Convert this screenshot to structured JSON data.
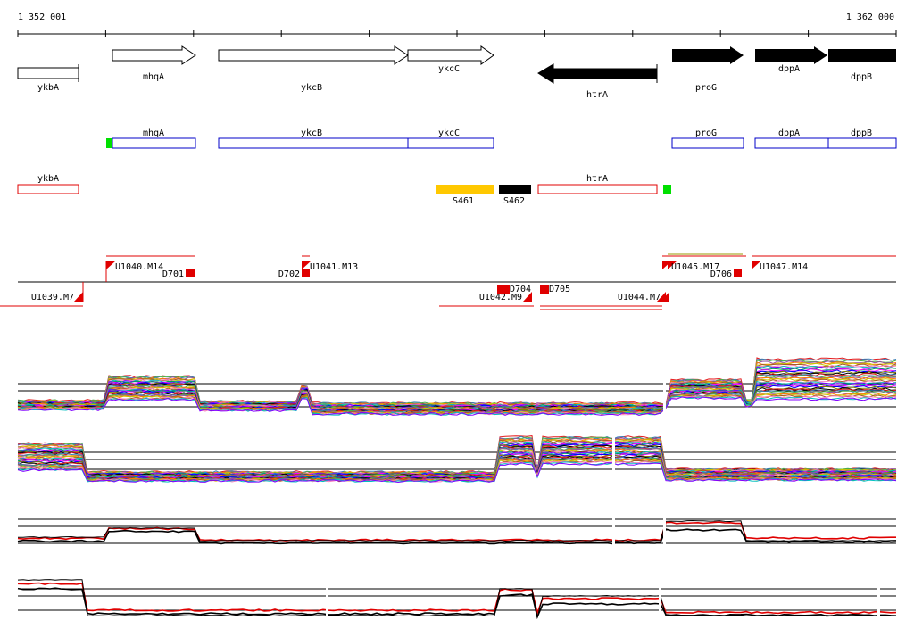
{
  "ruler": {
    "start_label": "1 352 001",
    "end_label": "1 362 000"
  },
  "genes": [
    {
      "name": "ykbA",
      "strand": "-",
      "fill": "white"
    },
    {
      "name": "mhqA",
      "strand": "+",
      "fill": "white"
    },
    {
      "name": "ykcB",
      "strand": "+",
      "fill": "white"
    },
    {
      "name": "ykcC",
      "strand": "+",
      "fill": "white"
    },
    {
      "name": "htrA",
      "strand": "-",
      "fill": "black"
    },
    {
      "name": "proG",
      "strand": "+",
      "fill": "black"
    },
    {
      "name": "dppA",
      "strand": "+",
      "fill": "black"
    },
    {
      "name": "dppB",
      "strand": "+",
      "fill": "black"
    }
  ],
  "blue_track": [
    {
      "name": "mhqA"
    },
    {
      "name": "ykcB"
    },
    {
      "name": "ykcC"
    },
    {
      "name": "proG"
    },
    {
      "name": "dppA"
    },
    {
      "name": "dppB"
    }
  ],
  "red_track": [
    {
      "name": "ykbA"
    },
    {
      "name": "htrA"
    }
  ],
  "noncoding": [
    {
      "name": "S461",
      "color": "#ffc800"
    },
    {
      "name": "S462",
      "color": "#000000"
    }
  ],
  "green_marker_color": "#00e000",
  "segments": [
    {
      "label": "U1040.M14"
    },
    {
      "label": "D701"
    },
    {
      "label": "D702"
    },
    {
      "label": "U1041.M13"
    },
    {
      "label": "U1039.M7"
    },
    {
      "label": "U1042.M9"
    },
    {
      "label": "D704"
    },
    {
      "label": "D705"
    },
    {
      "label": "U1044.M7"
    },
    {
      "label": "U1045.M17"
    },
    {
      "label": "D706"
    },
    {
      "label": "U1047.M14"
    }
  ],
  "palette": [
    "#e41a1c",
    "#377eb8",
    "#4daf4a",
    "#984ea3",
    "#ff7f00",
    "#c8c800",
    "#a65628",
    "#f781bf",
    "#00c0c0",
    "#8000ff",
    "#00a060",
    "#ff00ff",
    "#0000ff",
    "#808000",
    "#000000"
  ]
}
